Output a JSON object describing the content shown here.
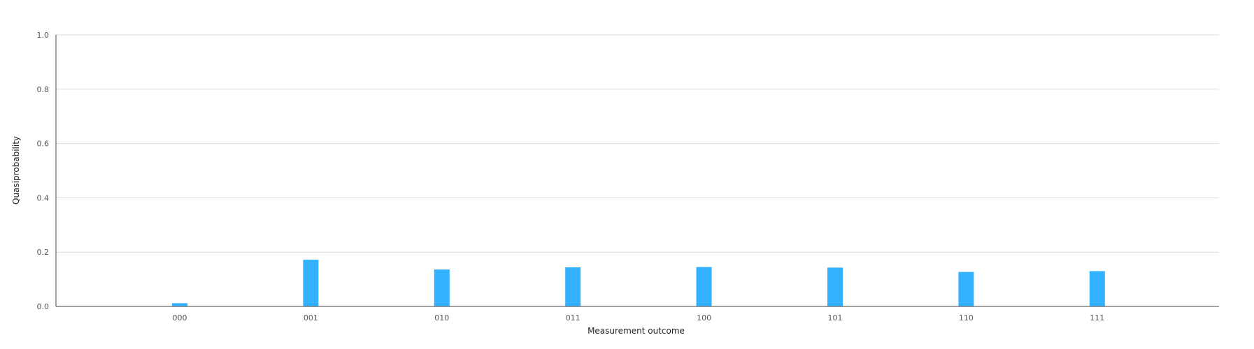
{
  "chart_data": {
    "type": "bar",
    "categories": [
      "000",
      "001",
      "010",
      "011",
      "100",
      "101",
      "110",
      "111"
    ],
    "values": [
      0.012,
      0.172,
      0.136,
      0.144,
      0.145,
      0.143,
      0.127,
      0.13
    ],
    "title": "",
    "xlabel": "Measurement outcome",
    "ylabel": "Quasiprobability",
    "ylim": [
      0,
      1.0
    ],
    "yticks": [
      "0.0",
      "0.2",
      "0.4",
      "0.6",
      "0.8",
      "1.0"
    ],
    "grid": true,
    "bar_color": "#33b1ff"
  }
}
